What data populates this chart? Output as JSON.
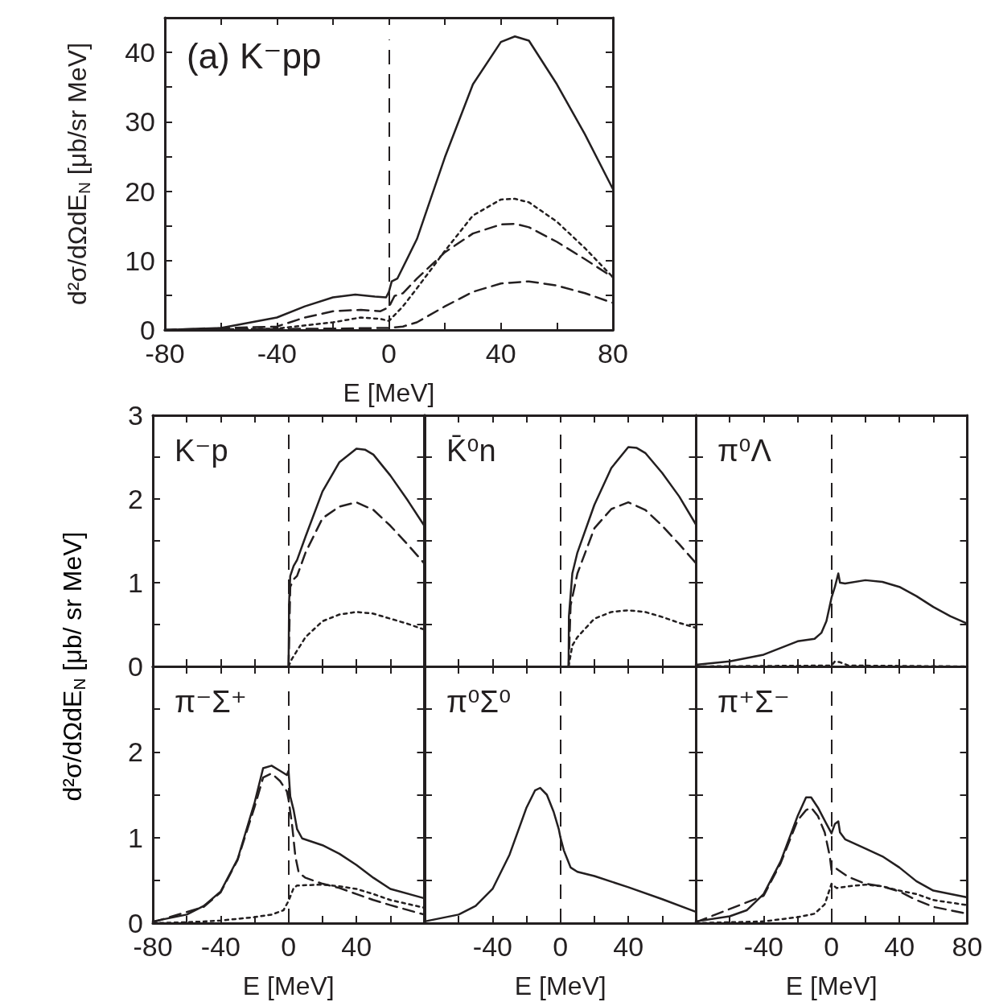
{
  "chart_data": [
    {
      "type": "line",
      "title": "(a) K⁻pp",
      "xlabel": "E [MeV]",
      "ylabel": "d²σ/dΩdE$_{N}$ [μb/sr MeV]",
      "xlim": [
        -80,
        80
      ],
      "ylim": [
        0,
        45
      ],
      "xticks": [
        -80,
        {
          "value": -60,
          "label": null
        },
        -40,
        {
          "value": -20,
          "label": null
        },
        0,
        {
          "value": 20,
          "label": null
        },
        40,
        {
          "value": 60,
          "label": null
        },
        80
      ],
      "yticks": [
        0,
        {
          "value": 5,
          "label": null
        },
        10,
        {
          "value": 15,
          "label": null
        },
        20,
        {
          "value": 25,
          "label": null
        },
        30,
        {
          "value": 35,
          "label": null
        },
        40,
        {
          "value": 45,
          "label": null
        }
      ],
      "ref_lines": [
        {
          "axis": "x",
          "value": 0,
          "line_style": "dashed"
        }
      ],
      "series": [
        {
          "color": "#231f20",
          "line_style": "solid",
          "x": [
            -80,
            -60,
            -40,
            -30,
            -20,
            -12,
            -5,
            -1,
            0,
            1,
            3,
            10,
            20,
            30,
            40,
            45,
            50,
            60,
            70,
            80
          ],
          "values": [
            0,
            0.3,
            1.8,
            3.4,
            4.7,
            5.1,
            4.8,
            4.7,
            5.5,
            7.0,
            7.4,
            13.1,
            24.9,
            35.4,
            41.5,
            42.3,
            41.7,
            35.4,
            28.2,
            20.3
          ]
        },
        {
          "color": "#231f20",
          "line_style": "dotted",
          "x": [
            -80,
            -40,
            -20,
            -10,
            -3,
            0,
            5,
            10,
            20,
            30,
            40,
            45,
            50,
            60,
            70,
            80
          ],
          "values": [
            0,
            0.2,
            1.1,
            1.8,
            1.6,
            1.3,
            3.4,
            6.0,
            11.4,
            16.5,
            18.8,
            18.9,
            18.4,
            15.6,
            11.8,
            7.6
          ]
        },
        {
          "color": "#231f20",
          "line_style": "dashed",
          "x": [
            -80,
            -40,
            -30,
            -20,
            -10,
            -3,
            0,
            2,
            5,
            10,
            20,
            30,
            40,
            45,
            50,
            60,
            70,
            80
          ],
          "values": [
            0,
            0.5,
            1.8,
            2.7,
            2.9,
            2.7,
            3.3,
            4.9,
            5.3,
            7.4,
            11.2,
            13.9,
            15.2,
            15.3,
            14.8,
            12.7,
            10.2,
            7.6
          ]
        },
        {
          "color": "#231f20",
          "line_style": "dashed",
          "x": [
            -80,
            -20,
            0,
            5,
            10,
            20,
            30,
            40,
            50,
            60,
            70,
            80
          ],
          "values": [
            0,
            0.2,
            0.3,
            0.5,
            1.1,
            3.4,
            5.5,
            6.7,
            7.0,
            6.4,
            5.3,
            3.9
          ]
        }
      ]
    },
    {
      "type": "line",
      "title": "K⁻p",
      "ylabel": "d²σ/dΩdE$_{N}$ [μb/ sr MeV]",
      "tick_labels": "y",
      "xlim": [
        -80,
        80
      ],
      "ylim": [
        0,
        3
      ],
      "xticks": [
        {
          "value": -80,
          "label": null
        },
        {
          "value": -60,
          "label": null
        },
        {
          "value": -40,
          "label": null
        },
        {
          "value": -20,
          "label": null
        },
        {
          "value": 0,
          "label": null
        },
        {
          "value": 20,
          "label": null
        },
        {
          "value": 40,
          "label": null
        },
        {
          "value": 60,
          "label": null
        },
        {
          "value": 80,
          "label": null
        }
      ],
      "yticks": [
        0,
        {
          "value": 0.5,
          "label": null
        },
        1,
        {
          "value": 1.5,
          "label": null
        },
        2,
        {
          "value": 2.5,
          "label": null
        },
        3
      ],
      "ref_lines": [
        {
          "axis": "x",
          "value": 0,
          "line_style": "dashed"
        }
      ],
      "series": [
        {
          "color": "#231f20",
          "line_style": "solid",
          "x": [
            0,
            0.3,
            1,
            3,
            5,
            10,
            20,
            30,
            40,
            45,
            50,
            60,
            70,
            80
          ],
          "values": [
            0,
            0.76,
            1.08,
            1.2,
            1.27,
            1.55,
            2.09,
            2.44,
            2.6,
            2.59,
            2.53,
            2.28,
            1.99,
            1.68
          ]
        },
        {
          "color": "#231f20",
          "line_style": "dashed",
          "x": [
            0,
            1,
            3,
            5,
            10,
            20,
            30,
            40,
            50,
            60,
            70,
            80
          ],
          "values": [
            0,
            0.95,
            1.04,
            1.08,
            1.36,
            1.77,
            1.91,
            1.96,
            1.87,
            1.68,
            1.46,
            1.23
          ]
        },
        {
          "color": "#231f20",
          "line_style": "dotted",
          "x": [
            0,
            2,
            10,
            20,
            30,
            40,
            50,
            60,
            70,
            80
          ],
          "values": [
            0,
            0.09,
            0.35,
            0.54,
            0.62,
            0.65,
            0.63,
            0.57,
            0.51,
            0.44
          ]
        }
      ]
    },
    {
      "type": "line",
      "title": "K̄⁰n",
      "tick_labels": false,
      "xlim": [
        -80,
        80
      ],
      "ylim": [
        0,
        3
      ],
      "xticks": [
        {
          "value": -80,
          "label": null
        },
        {
          "value": -60,
          "label": null
        },
        {
          "value": -40,
          "label": null
        },
        {
          "value": -20,
          "label": null
        },
        {
          "value": 0,
          "label": null
        },
        {
          "value": 20,
          "label": null
        },
        {
          "value": 40,
          "label": null
        },
        {
          "value": 60,
          "label": null
        },
        {
          "value": 80,
          "label": null
        }
      ],
      "yticks": [
        {
          "value": 0,
          "label": null
        },
        {
          "value": 0.5,
          "label": null
        },
        {
          "value": 1,
          "label": null
        },
        {
          "value": 1.5,
          "label": null
        },
        {
          "value": 2,
          "label": null
        },
        {
          "value": 2.5,
          "label": null
        },
        {
          "value": 3,
          "label": null
        }
      ],
      "ref_lines": [
        {
          "axis": "x",
          "value": 0,
          "line_style": "dashed"
        }
      ],
      "series": [
        {
          "color": "#231f20",
          "line_style": "solid",
          "x": [
            4.8,
            5,
            7,
            10,
            20,
            30,
            40,
            45,
            50,
            60,
            70,
            80
          ],
          "values": [
            0,
            0.6,
            1.11,
            1.36,
            1.93,
            2.37,
            2.62,
            2.61,
            2.55,
            2.31,
            2.03,
            1.69
          ]
        },
        {
          "color": "#231f20",
          "line_style": "dashed",
          "x": [
            4.8,
            6,
            10,
            20,
            30,
            40,
            50,
            60,
            70,
            80
          ],
          "values": [
            0,
            0.73,
            1.11,
            1.65,
            1.88,
            1.96,
            1.87,
            1.68,
            1.46,
            1.23
          ]
        },
        {
          "color": "#231f20",
          "line_style": "dotted",
          "x": [
            4.8,
            7,
            10,
            20,
            30,
            40,
            50,
            60,
            70,
            80
          ],
          "values": [
            0,
            0.25,
            0.35,
            0.57,
            0.65,
            0.67,
            0.65,
            0.59,
            0.52,
            0.46
          ]
        }
      ]
    },
    {
      "type": "line",
      "title": "π⁰Λ",
      "tick_labels": false,
      "xlim": [
        -80,
        80
      ],
      "ylim": [
        0,
        3
      ],
      "xticks": [
        {
          "value": -80,
          "label": null
        },
        {
          "value": -60,
          "label": null
        },
        {
          "value": -40,
          "label": null
        },
        {
          "value": -20,
          "label": null
        },
        {
          "value": 0,
          "label": null
        },
        {
          "value": 20,
          "label": null
        },
        {
          "value": 40,
          "label": null
        },
        {
          "value": 60,
          "label": null
        },
        {
          "value": 80,
          "label": null
        }
      ],
      "yticks": [
        {
          "value": 0,
          "label": null
        },
        {
          "value": 0.5,
          "label": null
        },
        {
          "value": 1,
          "label": null
        },
        {
          "value": 1.5,
          "label": null
        },
        {
          "value": 2,
          "label": null
        },
        {
          "value": 2.5,
          "label": null
        },
        {
          "value": 3,
          "label": null
        }
      ],
      "ref_lines": [
        {
          "axis": "x",
          "value": 0,
          "line_style": "dashed"
        }
      ],
      "series": [
        {
          "color": "#231f20",
          "line_style": "solid",
          "x": [
            -80,
            -60,
            -40,
            -30,
            -20,
            -10,
            -6,
            -3,
            0,
            2,
            4,
            5,
            8,
            20,
            30,
            40,
            50,
            60,
            70,
            80
          ],
          "values": [
            0.02,
            0.06,
            0.14,
            0.22,
            0.3,
            0.33,
            0.4,
            0.54,
            0.82,
            0.95,
            1.11,
            1.0,
            0.99,
            1.03,
            1.01,
            0.95,
            0.84,
            0.71,
            0.6,
            0.51
          ]
        },
        {
          "color": "#231f20",
          "line_style": "dotted",
          "x": [
            -80,
            0,
            2,
            5,
            10,
            80
          ],
          "values": [
            0,
            0.01,
            0.06,
            0.05,
            0.01,
            0
          ]
        }
      ]
    },
    {
      "type": "line",
      "title": "π⁻Σ⁺",
      "xlabel": "E [MeV]",
      "xlim": [
        -80,
        80
      ],
      "ylim": [
        0,
        3
      ],
      "xticks": [
        -80,
        {
          "value": -60,
          "label": null
        },
        -40,
        {
          "value": -20,
          "label": null
        },
        0,
        {
          "value": 20,
          "label": null
        },
        40,
        {
          "value": 60,
          "label": null
        },
        {
          "value": 80,
          "label": null
        }
      ],
      "yticks": [
        0,
        {
          "value": 0.5,
          "label": null
        },
        1,
        {
          "value": 1.5,
          "label": null
        },
        2,
        {
          "value": 2.5,
          "label": null
        },
        {
          "value": 3,
          "label": null
        }
      ],
      "ref_lines": [
        {
          "axis": "x",
          "value": 0,
          "line_style": "dashed"
        }
      ],
      "series": [
        {
          "color": "#231f20",
          "line_style": "solid",
          "x": [
            -80,
            -60,
            -50,
            -40,
            -30,
            -20,
            -15,
            -10,
            -5,
            -1,
            0,
            1,
            3,
            5,
            8,
            20,
            30,
            40,
            50,
            60,
            80
          ],
          "values": [
            0.02,
            0.1,
            0.2,
            0.37,
            0.75,
            1.41,
            1.81,
            1.84,
            1.78,
            1.73,
            1.78,
            1.48,
            1.32,
            1.1,
            0.99,
            0.91,
            0.81,
            0.68,
            0.53,
            0.4,
            0.29
          ]
        },
        {
          "color": "#231f20",
          "line_style": "dashed",
          "x": [
            -80,
            -50,
            -40,
            -30,
            -20,
            -15,
            -10,
            -5,
            -1,
            0,
            2,
            4,
            6,
            10,
            20,
            30,
            40,
            50,
            60,
            80
          ],
          "values": [
            0.01,
            0.19,
            0.36,
            0.74,
            1.36,
            1.7,
            1.75,
            1.66,
            1.54,
            1.44,
            1.16,
            0.78,
            0.59,
            0.53,
            0.46,
            0.41,
            0.34,
            0.27,
            0.21,
            0.1
          ]
        },
        {
          "color": "#231f20",
          "line_style": "dotted",
          "x": [
            -80,
            -60,
            -40,
            -20,
            -10,
            -3,
            0,
            3,
            5,
            20,
            30,
            40,
            50,
            60,
            80
          ],
          "values": [
            0,
            0.01,
            0.03,
            0.07,
            0.1,
            0.15,
            0.26,
            0.41,
            0.44,
            0.45,
            0.43,
            0.4,
            0.34,
            0.27,
            0.18
          ]
        }
      ]
    },
    {
      "type": "line",
      "title": "π⁰Σ⁰",
      "xlabel": "E [MeV]",
      "tick_labels": "x",
      "xlim": [
        -80,
        80
      ],
      "ylim": [
        0,
        3
      ],
      "xticks": [
        {
          "value": -80,
          "label": null
        },
        {
          "value": -60,
          "label": null
        },
        -40,
        {
          "value": -20,
          "label": null
        },
        0,
        {
          "value": 20,
          "label": null
        },
        40,
        {
          "value": 60,
          "label": null
        },
        {
          "value": 80,
          "label": null
        }
      ],
      "yticks": [
        {
          "value": 0,
          "label": null
        },
        {
          "value": 0.5,
          "label": null
        },
        {
          "value": 1,
          "label": null
        },
        {
          "value": 1.5,
          "label": null
        },
        {
          "value": 2,
          "label": null
        },
        {
          "value": 2.5,
          "label": null
        },
        {
          "value": 3,
          "label": null
        }
      ],
      "ref_lines": [
        {
          "axis": "x",
          "value": 0,
          "line_style": "dashed"
        }
      ],
      "series": [
        {
          "color": "#231f20",
          "line_style": "solid",
          "x": [
            -80,
            -60,
            -50,
            -40,
            -30,
            -20,
            -15,
            -12,
            -8,
            -4,
            -1,
            0,
            2,
            4,
            6,
            10,
            20,
            40,
            60,
            80
          ],
          "values": [
            0.02,
            0.1,
            0.2,
            0.4,
            0.8,
            1.35,
            1.55,
            1.58,
            1.5,
            1.3,
            1.1,
            1.0,
            0.85,
            0.75,
            0.65,
            0.6,
            0.55,
            0.42,
            0.28,
            0.13
          ]
        }
      ]
    },
    {
      "type": "line",
      "title": "π⁺Σ⁻",
      "xlabel": "E [MeV]",
      "tick_labels": "x",
      "xlim": [
        -80,
        80
      ],
      "ylim": [
        0,
        3
      ],
      "xticks": [
        {
          "value": -80,
          "label": null
        },
        {
          "value": -60,
          "label": null
        },
        -40,
        {
          "value": -20,
          "label": null
        },
        0,
        {
          "value": 20,
          "label": null
        },
        40,
        {
          "value": 60,
          "label": null
        },
        80
      ],
      "yticks": [
        {
          "value": 0,
          "label": null
        },
        {
          "value": 0.5,
          "label": null
        },
        {
          "value": 1,
          "label": null
        },
        {
          "value": 1.5,
          "label": null
        },
        {
          "value": 2,
          "label": null
        },
        {
          "value": 2.5,
          "label": null
        },
        {
          "value": 3,
          "label": null
        }
      ],
      "ref_lines": [
        {
          "axis": "x",
          "value": 0,
          "line_style": "dashed"
        }
      ],
      "series": [
        {
          "color": "#231f20",
          "line_style": "solid",
          "x": [
            -80,
            -60,
            -50,
            -40,
            -30,
            -20,
            -15,
            -12,
            -8,
            -3,
            0,
            2,
            4,
            5,
            8,
            20,
            30,
            40,
            50,
            60,
            80
          ],
          "values": [
            0.02,
            0.08,
            0.15,
            0.34,
            0.72,
            1.25,
            1.47,
            1.47,
            1.35,
            1.16,
            1.05,
            1.16,
            1.19,
            1.06,
            0.98,
            0.87,
            0.78,
            0.65,
            0.49,
            0.38,
            0.3
          ]
        },
        {
          "color": "#231f20",
          "line_style": "dashed",
          "x": [
            -80,
            -40,
            -30,
            -20,
            -15,
            -12,
            -8,
            -4,
            -1,
            0,
            2,
            4,
            10,
            20,
            30,
            40,
            50,
            60,
            80
          ],
          "values": [
            0.01,
            0.32,
            0.7,
            1.2,
            1.32,
            1.35,
            1.25,
            1.06,
            0.78,
            0.62,
            0.65,
            0.62,
            0.54,
            0.46,
            0.43,
            0.37,
            0.27,
            0.19,
            0.11
          ]
        },
        {
          "color": "#231f20",
          "line_style": "dotted",
          "x": [
            -80,
            -40,
            -20,
            -10,
            -4,
            0,
            3,
            10,
            20,
            30,
            40,
            50,
            60,
            80
          ],
          "values": [
            0,
            0.02,
            0.07,
            0.11,
            0.22,
            0.46,
            0.41,
            0.43,
            0.45,
            0.43,
            0.38,
            0.34,
            0.27,
            0.21
          ]
        }
      ]
    }
  ]
}
